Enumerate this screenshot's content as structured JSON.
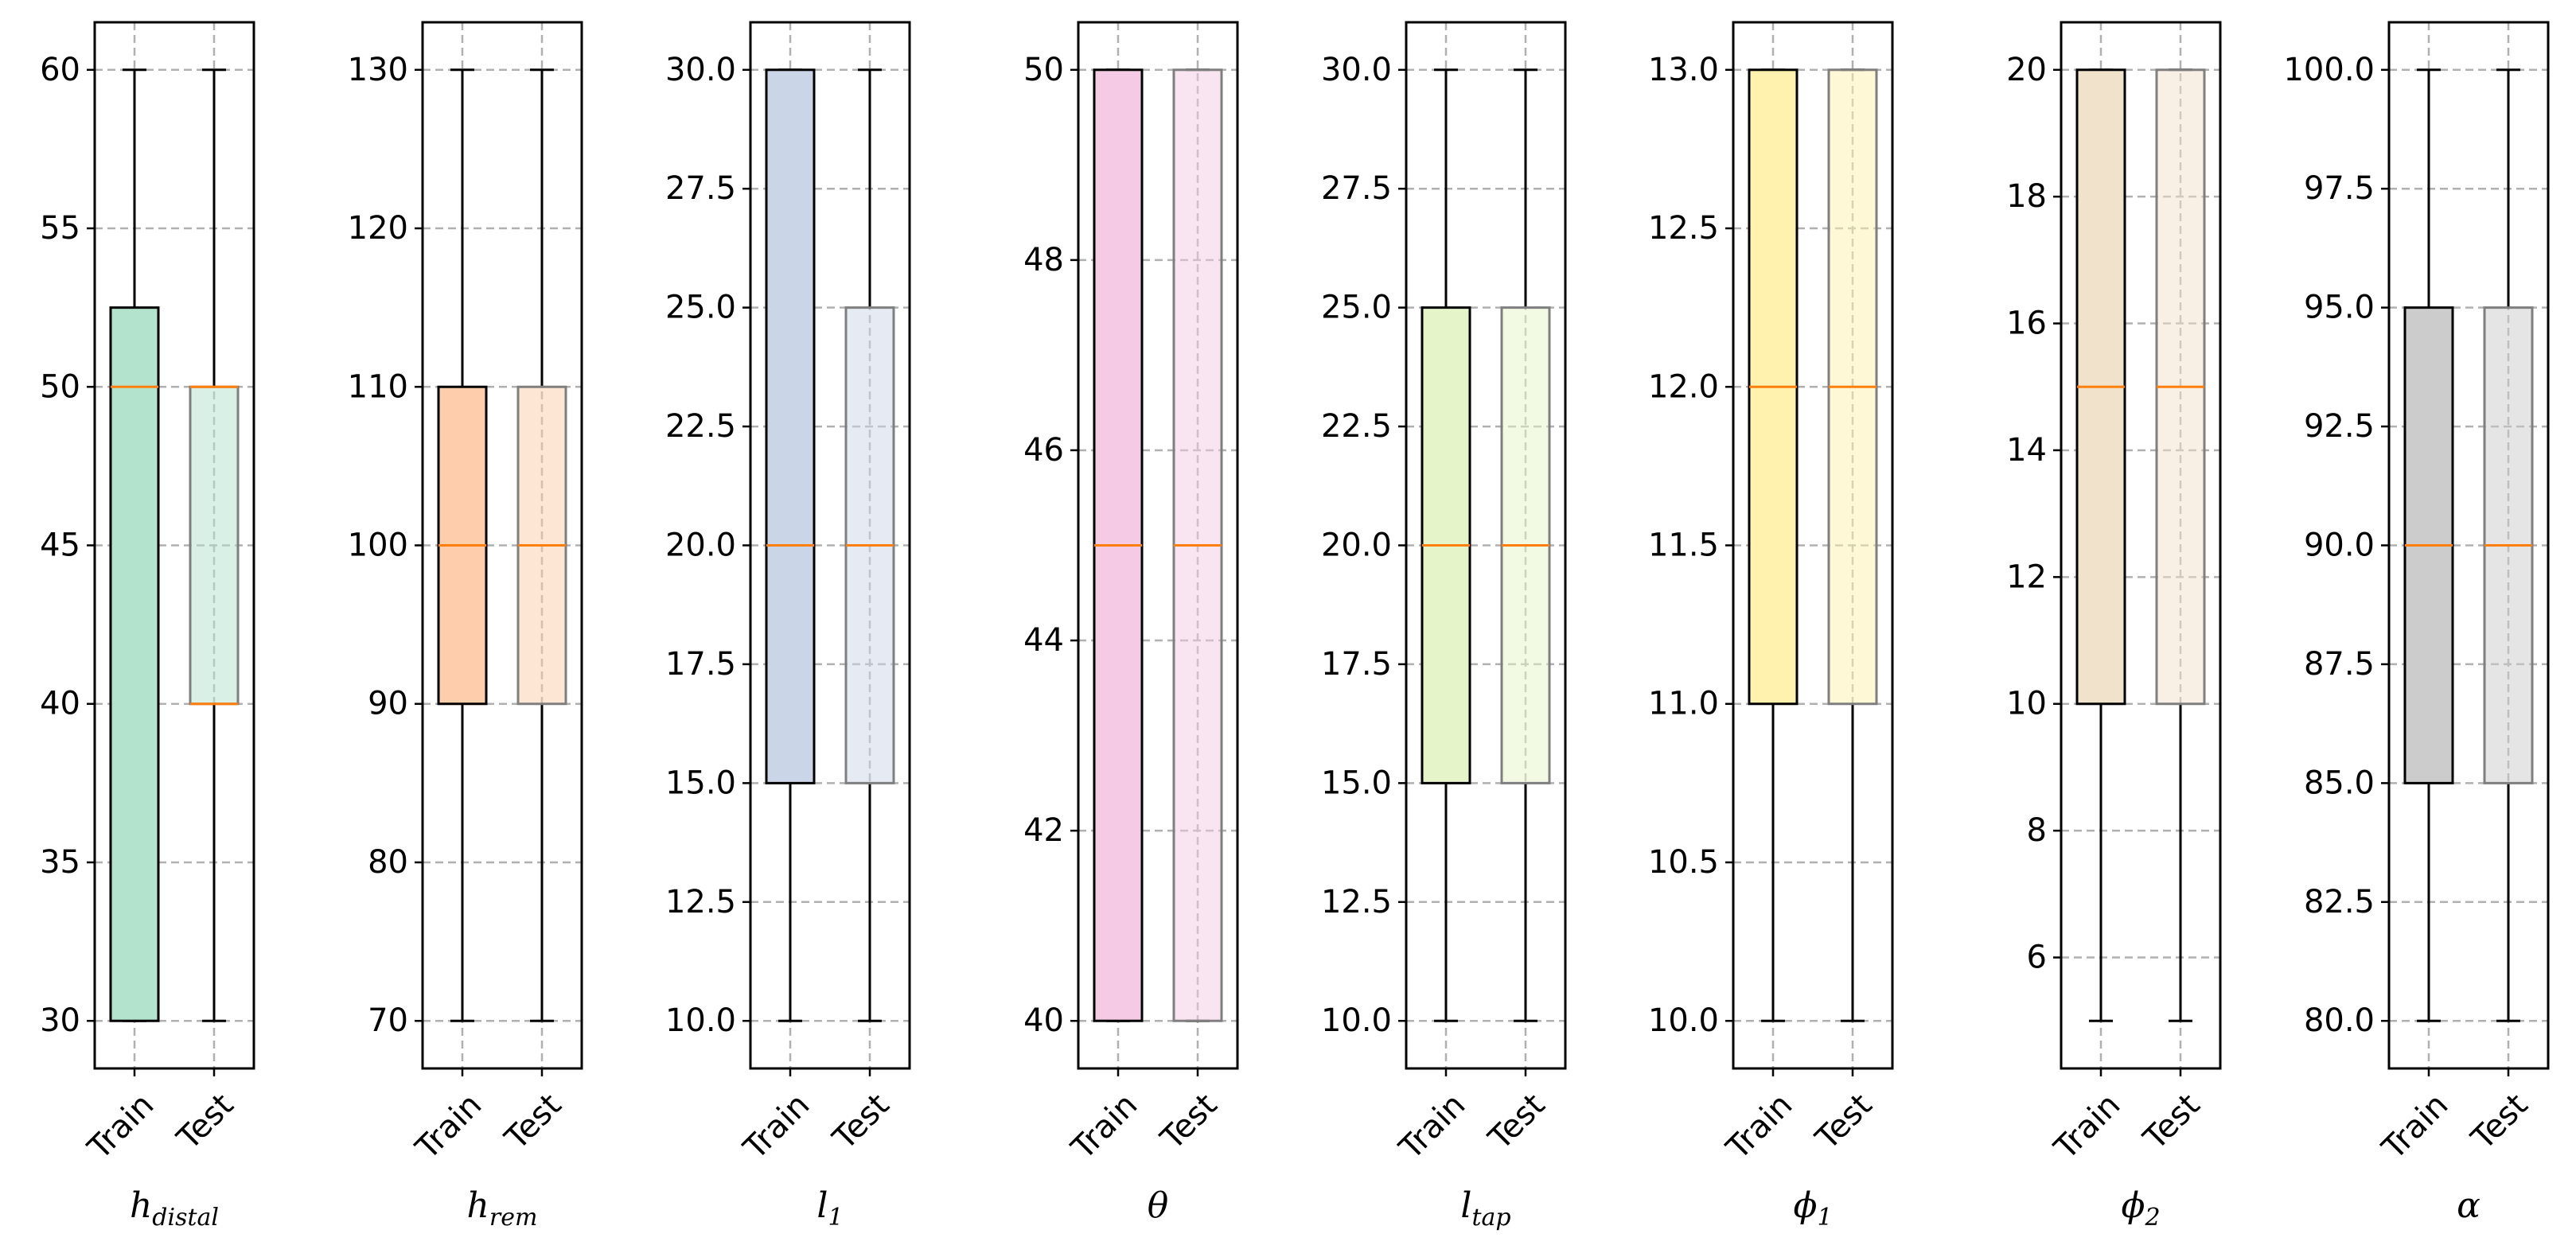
{
  "chart_data": {
    "type": "box",
    "layout": "8 side-by-side panels, shared x categories",
    "categories": [
      "Train",
      "Test"
    ],
    "grid": true,
    "median_color": "#ff7f0e",
    "panels": [
      {
        "name": "h_distal",
        "label_main": "h",
        "label_sub": "distal",
        "color": "#b3e2cd",
        "ylim": [
          28.5,
          61.5
        ],
        "yticks": [
          "30",
          "35",
          "40",
          "45",
          "50",
          "55",
          "60"
        ],
        "ytick_values": [
          30,
          35,
          40,
          45,
          50,
          55,
          60
        ],
        "boxes": [
          {
            "category": "Train",
            "whisker_low": 30,
            "q1": 30,
            "median": 50,
            "q3": 52.5,
            "whisker_high": 60
          },
          {
            "category": "Test",
            "whisker_low": 30,
            "q1": 40,
            "median": 50,
            "q3": 50,
            "whisker_high": 60,
            "extra_orange_line_at": 40
          }
        ]
      },
      {
        "name": "h_rem",
        "label_main": "h",
        "label_sub": "rem",
        "color": "#fdcdac",
        "ylim": [
          67,
          133
        ],
        "yticks": [
          "70",
          "80",
          "90",
          "100",
          "110",
          "120",
          "130"
        ],
        "ytick_values": [
          70,
          80,
          90,
          100,
          110,
          120,
          130
        ],
        "boxes": [
          {
            "category": "Train",
            "whisker_low": 70,
            "q1": 90,
            "median": 100,
            "q3": 110,
            "whisker_high": 130
          },
          {
            "category": "Test",
            "whisker_low": 70,
            "q1": 90,
            "median": 100,
            "q3": 110,
            "whisker_high": 130
          }
        ]
      },
      {
        "name": "l_1",
        "label_main": "l",
        "label_sub": "1",
        "color": "#cbd5e8",
        "ylim": [
          9,
          31
        ],
        "yticks": [
          "10.0",
          "12.5",
          "15.0",
          "17.5",
          "20.0",
          "22.5",
          "25.0",
          "27.5",
          "30.0"
        ],
        "ytick_values": [
          10,
          12.5,
          15,
          17.5,
          20,
          22.5,
          25,
          27.5,
          30
        ],
        "boxes": [
          {
            "category": "Train",
            "whisker_low": 10,
            "q1": 15,
            "median": 20,
            "q3": 30,
            "whisker_high": 30
          },
          {
            "category": "Test",
            "whisker_low": 10,
            "q1": 15,
            "median": 20,
            "q3": 25,
            "whisker_high": 30
          }
        ]
      },
      {
        "name": "theta",
        "label_main": "θ",
        "label_sub": "",
        "color": "#f4cae4",
        "ylim": [
          39.5,
          50.5
        ],
        "yticks": [
          "40",
          "42",
          "44",
          "46",
          "48",
          "50"
        ],
        "ytick_values": [
          40,
          42,
          44,
          46,
          48,
          50
        ],
        "boxes": [
          {
            "category": "Train",
            "whisker_low": 40,
            "q1": 40,
            "median": 45,
            "q3": 50,
            "whisker_high": 50
          },
          {
            "category": "Test",
            "whisker_low": 40,
            "q1": 40,
            "median": 45,
            "q3": 50,
            "whisker_high": 50
          }
        ]
      },
      {
        "name": "l_tap",
        "label_main": "l",
        "label_sub": "tap",
        "color": "#e6f5c9",
        "ylim": [
          9,
          31
        ],
        "yticks": [
          "10.0",
          "12.5",
          "15.0",
          "17.5",
          "20.0",
          "22.5",
          "25.0",
          "27.5",
          "30.0"
        ],
        "ytick_values": [
          10,
          12.5,
          15,
          17.5,
          20,
          22.5,
          25,
          27.5,
          30
        ],
        "boxes": [
          {
            "category": "Train",
            "whisker_low": 10,
            "q1": 15,
            "median": 20,
            "q3": 25,
            "whisker_high": 30
          },
          {
            "category": "Test",
            "whisker_low": 10,
            "q1": 15,
            "median": 20,
            "q3": 25,
            "whisker_high": 30
          }
        ]
      },
      {
        "name": "phi_1",
        "label_main": "ϕ",
        "label_sub": "1",
        "color": "#fff2ae",
        "ylim": [
          9.85,
          13.15
        ],
        "yticks": [
          "10.0",
          "10.5",
          "11.0",
          "11.5",
          "12.0",
          "12.5",
          "13.0"
        ],
        "ytick_values": [
          10,
          10.5,
          11,
          11.5,
          12,
          12.5,
          13
        ],
        "boxes": [
          {
            "category": "Train",
            "whisker_low": 10,
            "q1": 11,
            "median": 12,
            "q3": 13,
            "whisker_high": 13
          },
          {
            "category": "Test",
            "whisker_low": 10,
            "q1": 11,
            "median": 12,
            "q3": 13,
            "whisker_high": 13
          }
        ]
      },
      {
        "name": "phi_2",
        "label_main": "ϕ",
        "label_sub": "2",
        "color": "#f1e2cc",
        "ylim": [
          4.25,
          20.75
        ],
        "yticks": [
          "6",
          "8",
          "10",
          "12",
          "14",
          "16",
          "18",
          "20"
        ],
        "ytick_values": [
          6,
          8,
          10,
          12,
          14,
          16,
          18,
          20
        ],
        "boxes": [
          {
            "category": "Train",
            "whisker_low": 5,
            "q1": 10,
            "median": 15,
            "q3": 20,
            "whisker_high": 20
          },
          {
            "category": "Test",
            "whisker_low": 5,
            "q1": 10,
            "median": 15,
            "q3": 20,
            "whisker_high": 20
          }
        ]
      },
      {
        "name": "alpha",
        "label_main": "α",
        "label_sub": "",
        "color": "#cccccc",
        "ylim": [
          79,
          101
        ],
        "yticks": [
          "80.0",
          "82.5",
          "85.0",
          "87.5",
          "90.0",
          "92.5",
          "95.0",
          "97.5",
          "100.0"
        ],
        "ytick_values": [
          80,
          82.5,
          85,
          87.5,
          90,
          92.5,
          95,
          97.5,
          100
        ],
        "boxes": [
          {
            "category": "Train",
            "whisker_low": 80,
            "q1": 85,
            "median": 90,
            "q3": 95,
            "whisker_high": 100
          },
          {
            "category": "Test",
            "whisker_low": 80,
            "q1": 85,
            "median": 90,
            "q3": 95,
            "whisker_high": 100
          }
        ]
      }
    ]
  }
}
